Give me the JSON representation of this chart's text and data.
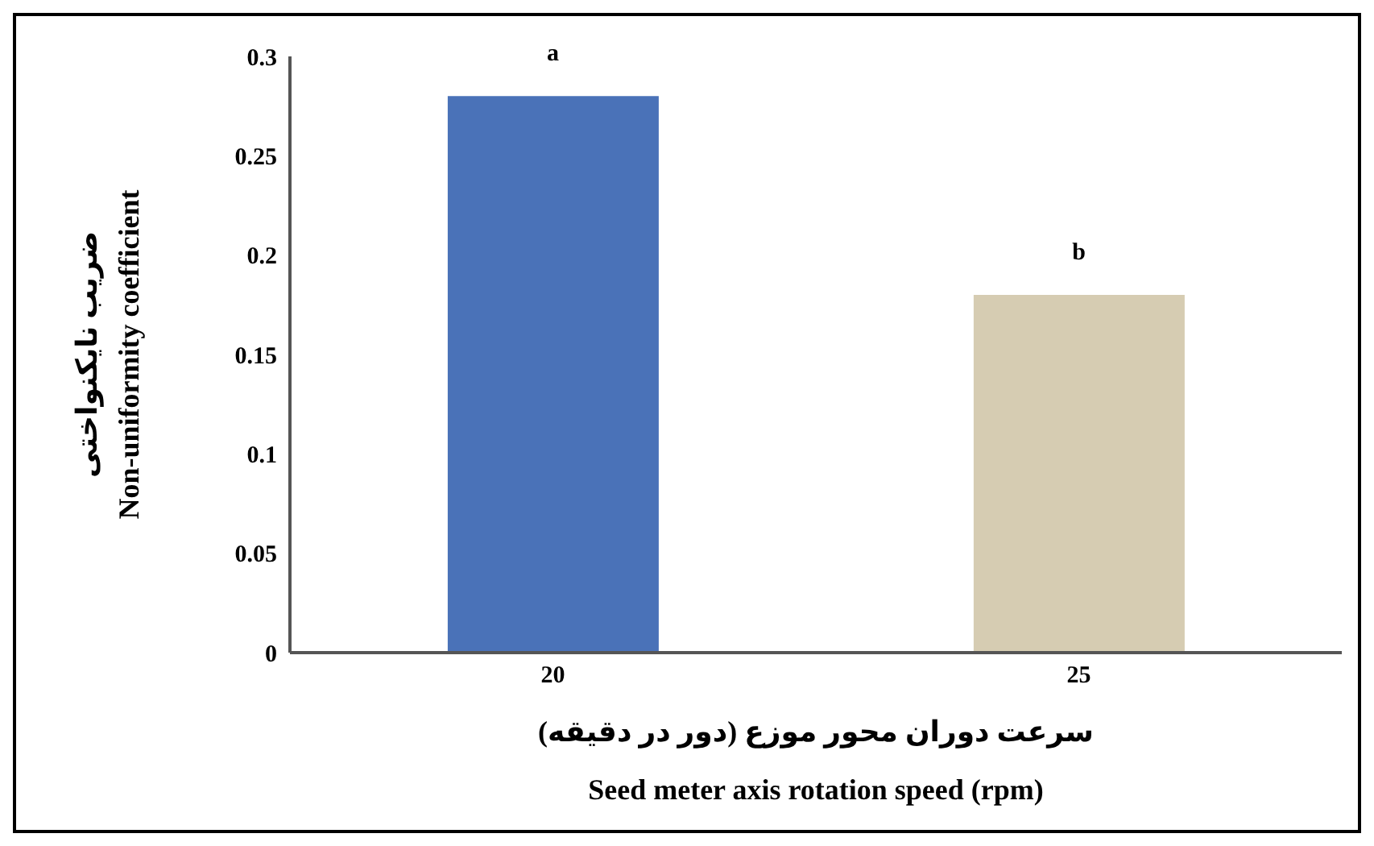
{
  "chart_data": {
    "type": "bar",
    "categories": [
      "20",
      "25"
    ],
    "values": [
      0.28,
      0.18
    ],
    "colors": [
      "#4a72b8",
      "#d6ccb2"
    ],
    "ylim": [
      0,
      0.3
    ],
    "yticks": [
      0,
      0.05,
      0.1,
      0.15,
      0.2,
      0.25,
      0.3
    ],
    "ylabel": "ضریب نایکنواختی\nNon-uniformity coefficient",
    "xlabel": "سرعت دوران محور موزع (دور در دقیقه)\nSeed meter axis rotation speed (rpm)",
    "annotations": [
      {
        "text": "a",
        "x": "20",
        "y": 0.28
      },
      {
        "text": "b",
        "x": "25",
        "y": 0.18
      }
    ],
    "grid": false,
    "legend": false
  }
}
